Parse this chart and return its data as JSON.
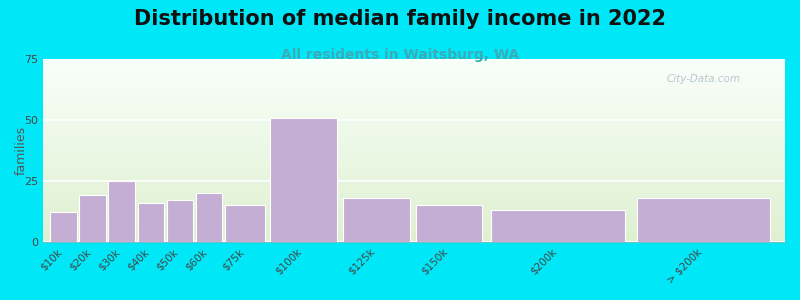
{
  "title": "Distribution of median family income in 2022",
  "subtitle": "All residents in Waitsburg, WA",
  "categories": [
    "$10k",
    "$20k",
    "$30k",
    "$40k",
    "$50k",
    "$60k",
    "$75k",
    "$100k",
    "$125k",
    "$150k",
    "$200k",
    "> $200k"
  ],
  "values": [
    12,
    19,
    25,
    16,
    17,
    20,
    15,
    51,
    18,
    15,
    13,
    18
  ],
  "bar_color": "#c4aed4",
  "ylabel": "families",
  "ylim": [
    0,
    75
  ],
  "yticks": [
    0,
    25,
    50,
    75
  ],
  "background_outer": "#00e8f8",
  "plot_bg_color_top": "#dff0d0",
  "plot_bg_color_bottom": "#f8fffa",
  "title_fontsize": 15,
  "subtitle_fontsize": 10,
  "subtitle_color": "#3aabb8",
  "watermark_text": "City-Data.com",
  "watermark_color": "#aabbc8",
  "positions_left": [
    0,
    1,
    2,
    3,
    4,
    5,
    6,
    7.5,
    10,
    12.5,
    15,
    20
  ],
  "widths": [
    1,
    1,
    1,
    1,
    1,
    1,
    1.5,
    2.5,
    2.5,
    2.5,
    5,
    5
  ],
  "xlim": [
    -0.2,
    25.3
  ]
}
